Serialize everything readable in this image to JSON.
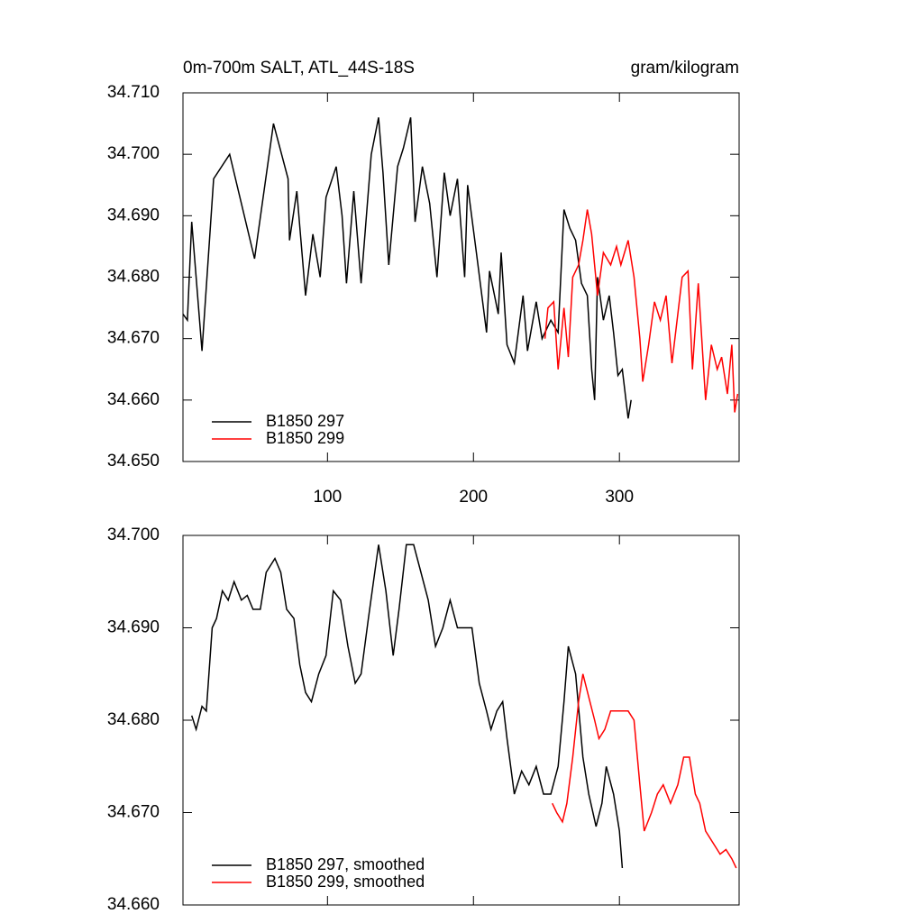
{
  "chart_data": [
    {
      "type": "line",
      "title": "0m-700m SALT, ATL_44S-18S",
      "subtitle": "gram/kilogram",
      "xlim": [
        1,
        382
      ],
      "xticks": [
        100,
        200,
        300
      ],
      "show_xtick_labels": true,
      "ylim": [
        34.65,
        34.71
      ],
      "yticks": [
        {
          "value": 34.65,
          "label": "34.650"
        },
        {
          "value": 34.66,
          "label": "34.660"
        },
        {
          "value": 34.67,
          "label": "34.670"
        },
        {
          "value": 34.68,
          "label": "34.680"
        },
        {
          "value": 34.69,
          "label": "34.690"
        },
        {
          "value": 34.7,
          "label": "34.700"
        },
        {
          "value": 34.71,
          "label": "34.710"
        }
      ],
      "legend": "lower-left",
      "series": [
        {
          "name": "B1850 297",
          "color": "#000000",
          "x": [
            1,
            4,
            7,
            14,
            22,
            33,
            50,
            63,
            73,
            74,
            79,
            85,
            90,
            95,
            99,
            106,
            110,
            113,
            118,
            123,
            130,
            135,
            138,
            142,
            148,
            152,
            157,
            160,
            165,
            170,
            175,
            180,
            184,
            189,
            194,
            196,
            202,
            209,
            211,
            217,
            219,
            223,
            228,
            234,
            237,
            243,
            247,
            253,
            258,
            262,
            266,
            270,
            274,
            278,
            281,
            283,
            285,
            289,
            293,
            296,
            299,
            302,
            306,
            308
          ],
          "values": [
            34.674,
            34.673,
            34.689,
            34.668,
            34.696,
            34.7,
            34.683,
            34.705,
            34.696,
            34.686,
            34.694,
            34.677,
            34.687,
            34.68,
            34.693,
            34.698,
            34.69,
            34.679,
            34.694,
            34.679,
            34.7,
            34.706,
            34.697,
            34.682,
            34.698,
            34.701,
            34.706,
            34.689,
            34.698,
            34.692,
            34.68,
            34.697,
            34.69,
            34.696,
            34.68,
            34.695,
            34.684,
            34.671,
            34.681,
            34.674,
            34.684,
            34.669,
            34.666,
            34.677,
            34.668,
            34.676,
            34.67,
            34.673,
            34.671,
            34.691,
            34.688,
            34.686,
            34.679,
            34.677,
            34.665,
            34.66,
            34.68,
            34.673,
            34.677,
            34.671,
            34.664,
            34.665,
            34.657,
            34.66
          ]
        },
        {
          "name": "B1850 299",
          "color": "#ff0000",
          "x": [
            249,
            251,
            255,
            258,
            262,
            265,
            268,
            272,
            275,
            278,
            281,
            285,
            289,
            294,
            298,
            301,
            306,
            310,
            314,
            316,
            320,
            324,
            328,
            332,
            336,
            340,
            343,
            347,
            350,
            354,
            359,
            363,
            367,
            370,
            374,
            377,
            379,
            381
          ],
          "values": [
            34.67,
            34.675,
            34.676,
            34.665,
            34.675,
            34.667,
            34.68,
            34.682,
            34.686,
            34.691,
            34.687,
            34.677,
            34.684,
            34.682,
            34.685,
            34.682,
            34.686,
            34.68,
            34.67,
            34.663,
            34.669,
            34.676,
            34.673,
            34.677,
            34.666,
            34.674,
            34.68,
            34.681,
            34.665,
            34.679,
            34.66,
            34.669,
            34.665,
            34.667,
            34.661,
            34.669,
            34.658,
            34.661
          ]
        }
      ]
    },
    {
      "type": "line",
      "xlim": [
        1,
        382
      ],
      "xticks": [
        100,
        200,
        300
      ],
      "show_xtick_labels": false,
      "ylim": [
        34.66,
        34.7
      ],
      "yticks": [
        {
          "value": 34.66,
          "label": "34.660"
        },
        {
          "value": 34.67,
          "label": "34.670"
        },
        {
          "value": 34.68,
          "label": "34.680"
        },
        {
          "value": 34.69,
          "label": "34.690"
        },
        {
          "value": 34.7,
          "label": "34.700"
        }
      ],
      "legend": "lower-left",
      "series": [
        {
          "name": "B1850 297, smoothed",
          "color": "#000000",
          "x": [
            7,
            10,
            14,
            17,
            21,
            24,
            28,
            32,
            36,
            41,
            45,
            49,
            54,
            58,
            64,
            68,
            72,
            77,
            81,
            85,
            89,
            94,
            99,
            104,
            109,
            114,
            119,
            123,
            128,
            135,
            140,
            145,
            149,
            154,
            159,
            164,
            169,
            174,
            179,
            184,
            189,
            194,
            199,
            204,
            209,
            212,
            216,
            220,
            223,
            228,
            233,
            238,
            243,
            248,
            253,
            258,
            262,
            265,
            270,
            275,
            279,
            284,
            288,
            291,
            296,
            300,
            302
          ],
          "values": [
            34.6805,
            34.679,
            34.6815,
            34.681,
            34.69,
            34.691,
            34.694,
            34.693,
            34.695,
            34.693,
            34.6935,
            34.692,
            34.692,
            34.696,
            34.6975,
            34.696,
            34.692,
            34.691,
            34.686,
            34.683,
            34.682,
            34.685,
            34.687,
            34.694,
            34.693,
            34.688,
            34.684,
            34.685,
            34.691,
            34.699,
            34.694,
            34.687,
            34.692,
            34.699,
            34.699,
            34.696,
            34.693,
            34.688,
            34.69,
            34.693,
            34.69,
            34.69,
            34.69,
            34.684,
            34.681,
            34.679,
            34.681,
            34.682,
            34.678,
            34.672,
            34.6745,
            34.673,
            34.675,
            34.672,
            34.672,
            34.675,
            34.682,
            34.688,
            34.685,
            34.676,
            34.672,
            34.6685,
            34.671,
            34.675,
            34.672,
            34.668,
            34.664
          ]
        },
        {
          "name": "B1850 299, smoothed",
          "color": "#ff0000",
          "x": [
            254,
            257,
            261,
            264,
            268,
            272,
            275,
            279,
            283,
            286,
            290,
            294,
            299,
            302,
            306,
            310,
            314,
            317,
            322,
            326,
            330,
            335,
            340,
            344,
            348,
            352,
            355,
            359,
            363,
            367,
            369,
            373,
            377,
            380
          ],
          "values": [
            34.671,
            34.67,
            34.669,
            34.671,
            34.676,
            34.682,
            34.685,
            34.6825,
            34.68,
            34.678,
            34.679,
            34.681,
            34.681,
            34.681,
            34.681,
            34.68,
            34.673,
            34.668,
            34.67,
            34.672,
            34.673,
            34.671,
            34.673,
            34.676,
            34.676,
            34.672,
            34.671,
            34.668,
            34.667,
            34.666,
            34.6655,
            34.666,
            34.665,
            34.664
          ]
        }
      ]
    }
  ]
}
